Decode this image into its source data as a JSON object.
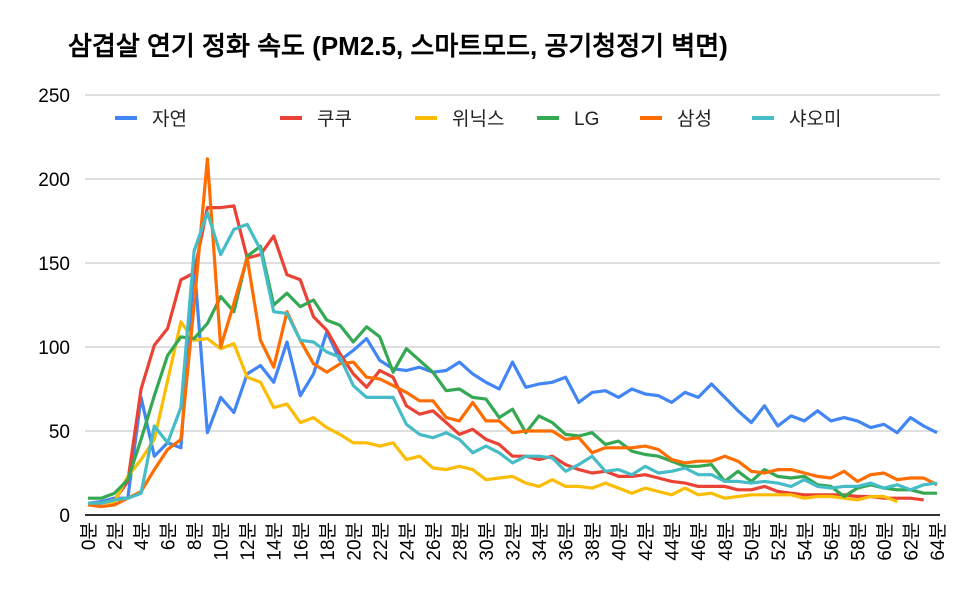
{
  "chart_data": {
    "type": "line",
    "title": "삼겹살 연기 정화 속도 (PM2.5, 스마트모드, 공기청정기 벽면)",
    "xlabel": "",
    "ylabel": "",
    "ylim": [
      0,
      250
    ],
    "yticks": [
      0,
      50,
      100,
      150,
      200,
      250
    ],
    "x_unit": "분",
    "x": [
      0,
      1,
      2,
      3,
      4,
      5,
      6,
      7,
      8,
      9,
      10,
      11,
      12,
      13,
      14,
      15,
      16,
      17,
      18,
      19,
      20,
      21,
      22,
      23,
      24,
      25,
      26,
      27,
      28,
      29,
      30,
      31,
      32,
      33,
      34,
      35,
      36,
      37,
      38,
      39,
      40,
      41,
      42,
      43,
      44,
      45,
      46,
      47,
      48,
      49,
      50,
      51,
      52,
      53,
      54,
      55,
      56,
      57,
      58,
      59,
      60,
      61,
      62,
      63,
      64
    ],
    "xtick_labels": [
      "0분",
      "2분",
      "4분",
      "6분",
      "8분",
      "10분",
      "12분",
      "14분",
      "16분",
      "18분",
      "20분",
      "22분",
      "24분",
      "26분",
      "28분",
      "30분",
      "32분",
      "34분",
      "36분",
      "38분",
      "40분",
      "42분",
      "44분",
      "46분",
      "48분",
      "50분",
      "52분",
      "54분",
      "56분",
      "58분",
      "60분",
      "62분",
      "64분"
    ],
    "grid": true,
    "legend_position": "top",
    "series": [
      {
        "name": "자연",
        "color": "#4285F4",
        "values": [
          7,
          8,
          10,
          10,
          70,
          35,
          43,
          40,
          150,
          49,
          70,
          61,
          84,
          89,
          79,
          103,
          71,
          84,
          109,
          92,
          98,
          105,
          92,
          87,
          86,
          88,
          85,
          86,
          91,
          84,
          79,
          75,
          91,
          76,
          78,
          79,
          82,
          67,
          73,
          74,
          70,
          75,
          72,
          71,
          67,
          73,
          70,
          78,
          70,
          62,
          55,
          65,
          53,
          59,
          56,
          62,
          56,
          58,
          56,
          52,
          54,
          49,
          58,
          53,
          49
        ]
      },
      {
        "name": "쿠쿠",
        "color": "#EA4335",
        "values": [
          6,
          7,
          9,
          20,
          75,
          101,
          111,
          140,
          144,
          183,
          183,
          184,
          153,
          155,
          166,
          143,
          140,
          118,
          110,
          96,
          84,
          76,
          86,
          82,
          65,
          60,
          62,
          55,
          48,
          51,
          45,
          42,
          35,
          35,
          33,
          35,
          30,
          27,
          25,
          26,
          23,
          23,
          24,
          22,
          20,
          19,
          17,
          17,
          17,
          15,
          15,
          17,
          14,
          13,
          12,
          12,
          12,
          12,
          11,
          11,
          10,
          10,
          10,
          9,
          null
        ]
      },
      {
        "name": "위닉스",
        "color": "#FBBC04",
        "values": [
          7,
          7,
          8,
          23,
          33,
          45,
          80,
          115,
          104,
          105,
          99,
          102,
          82,
          79,
          64,
          66,
          55,
          58,
          52,
          48,
          43,
          43,
          41,
          43,
          33,
          35,
          28,
          27,
          29,
          27,
          21,
          22,
          23,
          19,
          17,
          21,
          17,
          17,
          16,
          19,
          16,
          13,
          16,
          14,
          12,
          16,
          12,
          13,
          10,
          11,
          12,
          12,
          12,
          12,
          10,
          11,
          11,
          10,
          9,
          11,
          11,
          8,
          null,
          null,
          null
        ]
      },
      {
        "name": "LG",
        "color": "#34A853",
        "values": [
          10,
          10,
          13,
          21,
          45,
          71,
          95,
          106,
          105,
          114,
          130,
          121,
          154,
          160,
          125,
          132,
          124,
          128,
          116,
          113,
          103,
          112,
          106,
          85,
          99,
          92,
          85,
          74,
          75,
          70,
          69,
          58,
          63,
          49,
          59,
          55,
          48,
          47,
          49,
          42,
          44,
          38,
          36,
          35,
          32,
          29,
          29,
          30,
          20,
          26,
          20,
          27,
          23,
          22,
          23,
          18,
          17,
          11,
          16,
          18,
          16,
          15,
          15,
          13,
          13
        ]
      },
      {
        "name": "삼성",
        "color": "#FF6D01",
        "values": [
          6,
          5,
          6,
          10,
          14,
          27,
          39,
          45,
          125,
          212,
          100,
          126,
          153,
          104,
          88,
          121,
          104,
          90,
          85,
          90,
          91,
          82,
          81,
          77,
          73,
          68,
          68,
          58,
          56,
          67,
          56,
          56,
          49,
          50,
          50,
          50,
          45,
          46,
          37,
          40,
          40,
          40,
          41,
          39,
          33,
          31,
          32,
          32,
          35,
          32,
          26,
          25,
          27,
          27,
          25,
          23,
          22,
          26,
          20,
          24,
          25,
          21,
          22,
          22,
          18
        ]
      },
      {
        "name": "샤오미",
        "color": "#46BDC6",
        "values": [
          7,
          7,
          9,
          10,
          13,
          53,
          43,
          64,
          157,
          180,
          155,
          170,
          173,
          158,
          121,
          120,
          104,
          103,
          97,
          94,
          77,
          70,
          70,
          70,
          54,
          48,
          46,
          49,
          45,
          37,
          41,
          37,
          31,
          35,
          35,
          34,
          26,
          30,
          35,
          26,
          27,
          24,
          29,
          25,
          26,
          28,
          24,
          24,
          20,
          20,
          19,
          20,
          19,
          17,
          21,
          17,
          16,
          17,
          17,
          19,
          16,
          18,
          15,
          18,
          19
        ]
      }
    ]
  }
}
